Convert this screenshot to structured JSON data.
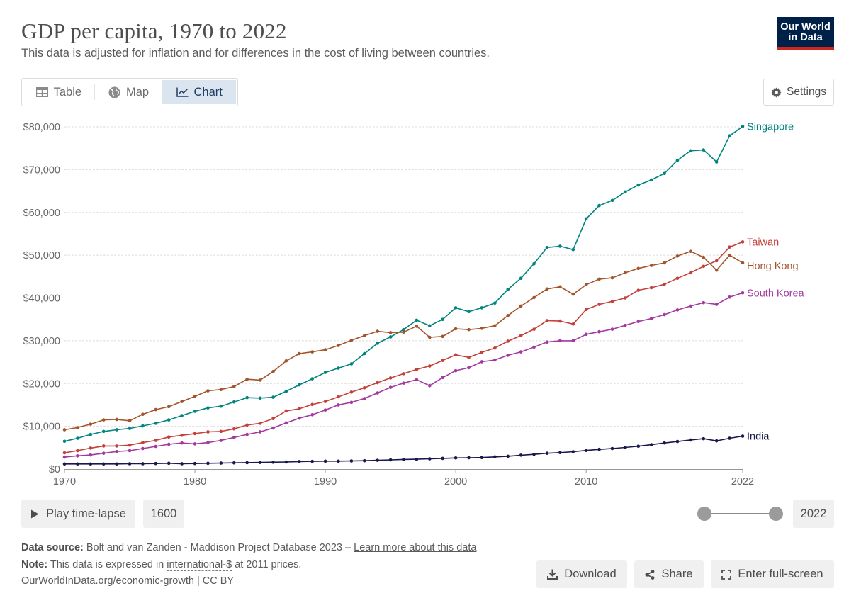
{
  "header": {
    "title": "GDP per capita, 1970 to 2022",
    "subtitle": "This data is adjusted for inflation and for differences in the cost of living between countries.",
    "logo_line1": "Our World",
    "logo_line2": "in Data"
  },
  "tabs": [
    {
      "label": "Table",
      "icon": "table-icon"
    },
    {
      "label": "Map",
      "icon": "globe-icon"
    },
    {
      "label": "Chart",
      "icon": "line-chart-icon",
      "active": true
    }
  ],
  "settings_label": "Settings",
  "chart_data": {
    "type": "line",
    "title": "GDP per capita, 1970 to 2022",
    "xlim": [
      1970,
      2022
    ],
    "ylim": [
      0,
      80000
    ],
    "y_ticks": [
      0,
      10000,
      20000,
      30000,
      40000,
      50000,
      60000,
      70000,
      80000
    ],
    "y_tick_labels": [
      "$0",
      "$10,000",
      "$20,000",
      "$30,000",
      "$40,000",
      "$50,000",
      "$60,000",
      "$70,000",
      "$80,000"
    ],
    "x_ticks": [
      1970,
      1980,
      1990,
      2000,
      2010,
      2022
    ],
    "x_tick_labels": [
      "1970",
      "1980",
      "1990",
      "2000",
      "2010",
      "2022"
    ],
    "grid": "horizontal dashed",
    "legend": "direct labels at line ends (right)",
    "x": [
      1970,
      1971,
      1972,
      1973,
      1974,
      1975,
      1976,
      1977,
      1978,
      1979,
      1980,
      1981,
      1982,
      1983,
      1984,
      1985,
      1986,
      1987,
      1988,
      1989,
      1990,
      1991,
      1992,
      1993,
      1994,
      1995,
      1996,
      1997,
      1998,
      1999,
      2000,
      2001,
      2002,
      2003,
      2004,
      2005,
      2006,
      2007,
      2008,
      2009,
      2010,
      2011,
      2012,
      2013,
      2014,
      2015,
      2016,
      2017,
      2018,
      2019,
      2020,
      2021,
      2022
    ],
    "series": [
      {
        "name": "Singapore",
        "color": "#00847e",
        "values": [
          6500,
          7200,
          8100,
          8800,
          9200,
          9500,
          10100,
          10700,
          11500,
          12500,
          13500,
          14300,
          14700,
          15700,
          16700,
          16600,
          16800,
          18200,
          19700,
          21100,
          22600,
          23600,
          24600,
          27000,
          29400,
          30900,
          32600,
          34800,
          33500,
          35000,
          37700,
          36800,
          37700,
          38800,
          42000,
          44600,
          48000,
          51800,
          52100,
          51300,
          58500,
          61600,
          62800,
          64800,
          66400,
          67600,
          69100,
          72200,
          74400,
          74600,
          71800,
          77900,
          80100
        ]
      },
      {
        "name": "Taiwan",
        "color": "#c4403a",
        "values": [
          3800,
          4300,
          4900,
          5400,
          5400,
          5600,
          6200,
          6700,
          7500,
          7900,
          8300,
          8700,
          8800,
          9400,
          10300,
          10700,
          11800,
          13600,
          14100,
          15100,
          15800,
          16900,
          18000,
          19000,
          20200,
          21300,
          22300,
          23300,
          24100,
          25400,
          26700,
          26100,
          27300,
          28300,
          29900,
          31200,
          32700,
          34700,
          34600,
          33900,
          37300,
          38500,
          39200,
          40000,
          41800,
          42400,
          43200,
          44600,
          45900,
          47400,
          48700,
          51900,
          53100
        ]
      },
      {
        "name": "Hong Kong",
        "color": "#a2552b",
        "values": [
          9200,
          9700,
          10500,
          11500,
          11600,
          11300,
          12800,
          13900,
          14600,
          15800,
          17000,
          18300,
          18600,
          19300,
          21000,
          20800,
          22800,
          25300,
          27000,
          27400,
          27900,
          28900,
          30100,
          31200,
          32200,
          31900,
          32000,
          33400,
          30800,
          31000,
          32800,
          32600,
          32900,
          33500,
          35900,
          38100,
          40100,
          42100,
          42600,
          40900,
          43100,
          44400,
          44700,
          45900,
          46900,
          47600,
          48200,
          49800,
          50900,
          49500,
          46500,
          50000,
          48200
        ]
      },
      {
        "name": "South Korea",
        "color": "#a2399f",
        "values": [
          2800,
          3100,
          3300,
          3700,
          4100,
          4300,
          4800,
          5300,
          5800,
          6100,
          5900,
          6200,
          6700,
          7400,
          8100,
          8700,
          9600,
          10800,
          11900,
          12700,
          13800,
          15000,
          15600,
          16500,
          17800,
          19100,
          20100,
          20900,
          19500,
          21400,
          23000,
          23700,
          25100,
          25500,
          26600,
          27400,
          28500,
          29700,
          30000,
          30000,
          31500,
          32100,
          32700,
          33600,
          34500,
          35200,
          36100,
          37200,
          38100,
          38900,
          38500,
          40200,
          41200
        ]
      },
      {
        "name": "India",
        "color": "#18184c",
        "values": [
          1200,
          1200,
          1200,
          1200,
          1200,
          1250,
          1250,
          1300,
          1350,
          1250,
          1300,
          1350,
          1400,
          1450,
          1500,
          1550,
          1600,
          1650,
          1750,
          1800,
          1850,
          1850,
          1900,
          1950,
          2050,
          2150,
          2250,
          2300,
          2400,
          2500,
          2600,
          2650,
          2700,
          2850,
          3000,
          3250,
          3450,
          3700,
          3850,
          4050,
          4350,
          4600,
          4800,
          5050,
          5350,
          5700,
          6100,
          6450,
          6800,
          7100,
          6600,
          7200,
          7700
        ]
      }
    ]
  },
  "timeline": {
    "play_label": "Play time-lapse",
    "start_label": "1600",
    "end_label": "2022"
  },
  "footer": {
    "source_label": "Data source:",
    "source_text": "Bolt and van Zanden - Maddison Project Database 2023 –",
    "source_link": "Learn more about this data",
    "note_label": "Note:",
    "note_text_pre": "This data is expressed in",
    "note_link": "international-$",
    "note_text_post": "at 2011 prices.",
    "url_line": "OurWorldInData.org/economic-growth | CC BY"
  },
  "actions": {
    "download": "Download",
    "share": "Share",
    "fullscreen": "Enter full-screen"
  }
}
